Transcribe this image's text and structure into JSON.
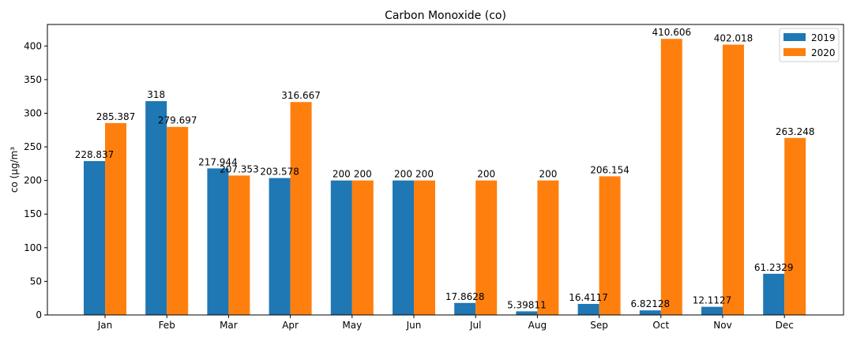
{
  "chart_data": {
    "type": "bar",
    "title": "Carbon Monoxide (co)",
    "xlabel": "",
    "ylabel": "co (µg/m³",
    "categories": [
      "Jan",
      "Feb",
      "Mar",
      "Apr",
      "May",
      "Jun",
      "Jul",
      "Aug",
      "Sep",
      "Oct",
      "Nov",
      "Dec"
    ],
    "series": [
      {
        "name": "2019",
        "color": "#1f77b4",
        "values": [
          228.837,
          318,
          217.944,
          203.578,
          200,
          200,
          17.8628,
          5.39811,
          16.4117,
          6.82128,
          12.1127,
          61.2329
        ],
        "labels": [
          "228.837",
          "318",
          "217.944",
          "203.578",
          "200",
          "200",
          "17.8628",
          "5.39811",
          "16.4117",
          "6.82128",
          "12.1127",
          "61.2329"
        ]
      },
      {
        "name": "2020",
        "color": "#ff7f0e",
        "values": [
          285.387,
          279.697,
          207.353,
          316.667,
          200,
          200,
          200,
          200,
          206.154,
          410.606,
          402.018,
          263.248
        ],
        "labels": [
          "285.387",
          "279.697",
          "207.353",
          "316.667",
          "200",
          "200",
          "200",
          "200",
          "206.154",
          "410.606",
          "402.018",
          "263.248"
        ]
      }
    ],
    "ylim": [
      0,
      432
    ],
    "yticks": [
      0,
      50,
      100,
      150,
      200,
      250,
      300,
      350,
      400
    ],
    "legend_position": "top-right",
    "grid": false
  }
}
